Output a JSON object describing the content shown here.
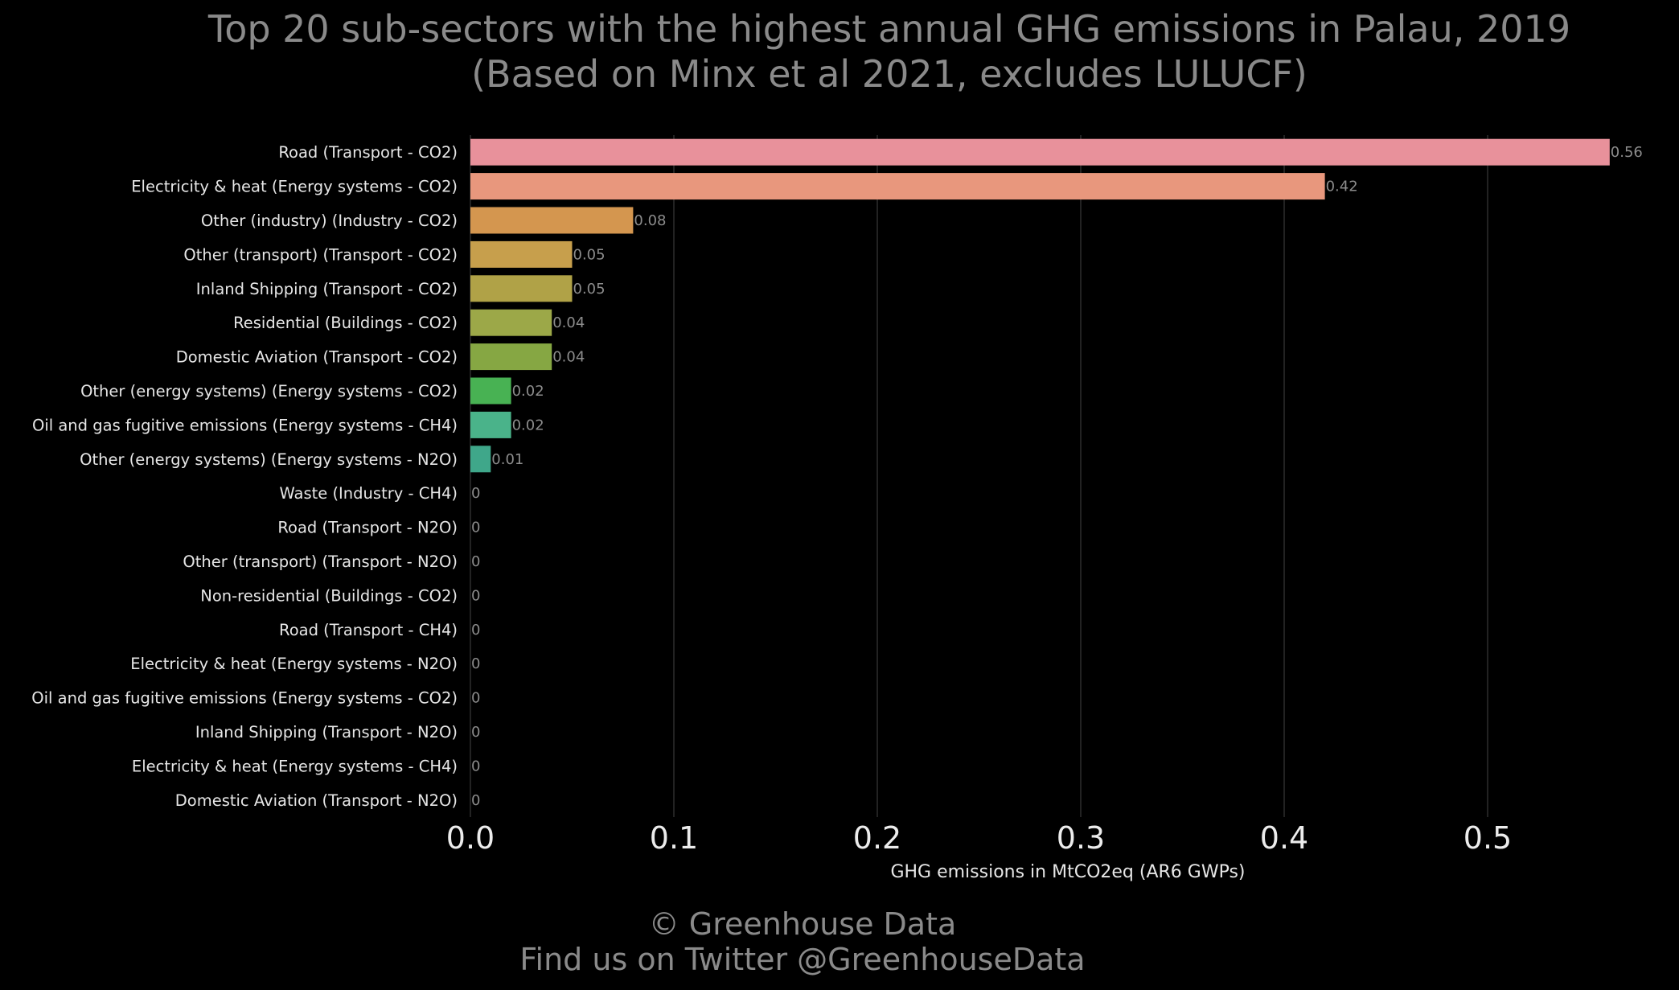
{
  "chart_data": {
    "type": "bar",
    "orientation": "horizontal",
    "title": "Top 20 sub-sectors with the highest annual GHG emissions in Palau, 2019",
    "subtitle": "(Based on Minx et al 2021, excludes LULUCF)",
    "xlabel": "GHG emissions in MtCO2eq (AR6 GWPs)",
    "ylabel": "",
    "xlim": [
      0,
      0.59
    ],
    "xticks": [
      0.0,
      0.1,
      0.2,
      0.3,
      0.4,
      0.5
    ],
    "xtick_labels": [
      "0.0",
      "0.1",
      "0.2",
      "0.3",
      "0.4",
      "0.5"
    ],
    "grid": "vertical",
    "categories": [
      "Road (Transport - CO2)",
      "Electricity & heat (Energy systems - CO2)",
      "Other (industry) (Industry - CO2)",
      "Other (transport) (Transport - CO2)",
      "Inland Shipping (Transport - CO2)",
      "Residential (Buildings - CO2)",
      "Domestic Aviation (Transport - CO2)",
      "Other (energy systems) (Energy systems - CO2)",
      "Oil and gas fugitive emissions (Energy systems - CH4)",
      "Other (energy systems) (Energy systems - N2O)",
      "Waste (Industry - CH4)",
      "Road (Transport - N2O)",
      "Other (transport) (Transport - N2O)",
      "Non-residential (Buildings - CO2)",
      "Road (Transport - CH4)",
      "Electricity & heat (Energy systems - N2O)",
      "Oil and gas fugitive emissions (Energy systems - CO2)",
      "Inland Shipping (Transport - N2O)",
      "Electricity & heat (Energy systems - CH4)",
      "Domestic Aviation (Transport - N2O)"
    ],
    "values": [
      0.56,
      0.42,
      0.08,
      0.05,
      0.05,
      0.04,
      0.04,
      0.02,
      0.02,
      0.01,
      0,
      0,
      0,
      0,
      0,
      0,
      0,
      0,
      0,
      0
    ],
    "value_labels": [
      "0.56",
      "0.42",
      "0.08",
      "0.05",
      "0.05",
      "0.04",
      "0.04",
      "0.02",
      "0.02",
      "0.01",
      "0",
      "0",
      "0",
      "0",
      "0",
      "0",
      "0",
      "0",
      "0",
      "0"
    ],
    "colors": [
      "#e8919b",
      "#e8977d",
      "#d4964f",
      "#c79f4c",
      "#b0a247",
      "#9ca848",
      "#86a743",
      "#48b253",
      "#4ab38a",
      "#3fa78a",
      "#3aa596",
      "#3aa6a6",
      "#3aa2b4",
      "#3c9cc2",
      "#5c93cf",
      "#858cd6",
      "#a683d8",
      "#c279d6",
      "#d874c6",
      "#e27fb0"
    ]
  },
  "footer": {
    "copyright": "© Greenhouse Data",
    "twitter": "Find us on Twitter @GreenhouseData"
  }
}
